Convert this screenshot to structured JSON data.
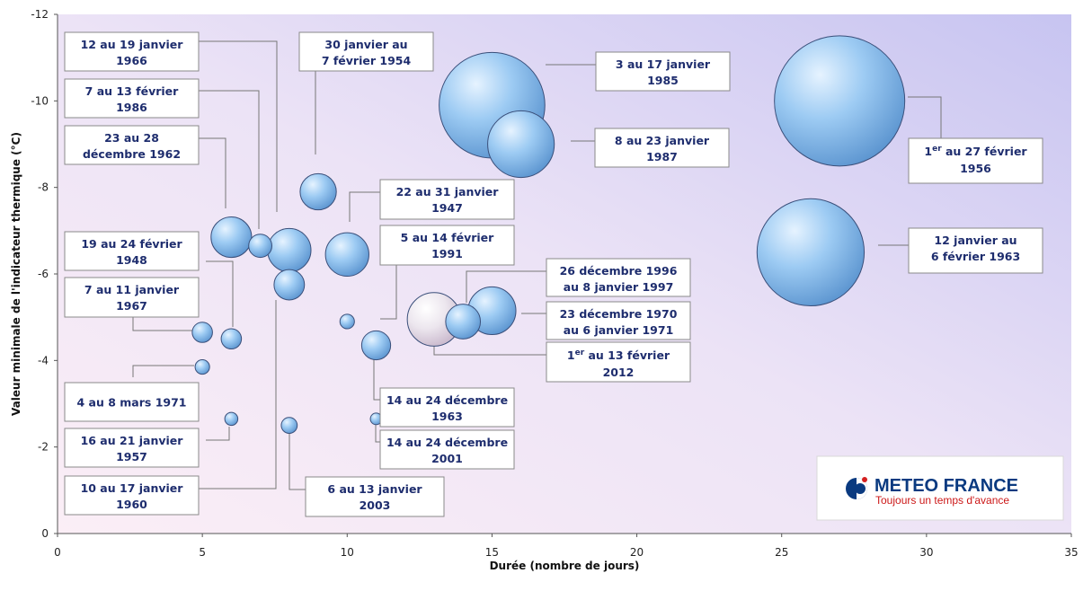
{
  "chart_data": {
    "type": "scatter",
    "title": "",
    "xlabel": "Durée (nombre de jours)",
    "ylabel": "Valeur minimale de l'indicateur thermique (°C)",
    "xlim": [
      0,
      35
    ],
    "ylim": [
      0,
      -12
    ],
    "x_ticks": [
      "0",
      "5",
      "10",
      "15",
      "20",
      "25",
      "30",
      "35"
    ],
    "y_ticks": [
      "0",
      "-2",
      "-4",
      "-6",
      "-8",
      "-10",
      "-12"
    ],
    "grid": false,
    "bubble_color": "#8fc2ee",
    "highlight_color": "#e9e2ec",
    "points": [
      {
        "label": [
          "3 au 17 janvier",
          "1985"
        ],
        "x": 15,
        "y": -9.9,
        "size": 3.65
      },
      {
        "label": [
          "8 au 23 janvier",
          "1987"
        ],
        "x": 16,
        "y": -9.0,
        "size": 2.3
      },
      {
        "label": [
          "1",
          "er",
          " au 27 février",
          "1956"
        ],
        "x": 27,
        "y": -10.0,
        "size": 4.5
      },
      {
        "label": [
          "12 janvier au",
          "6 février 1963"
        ],
        "x": 26,
        "y": -6.5,
        "size": 3.7
      },
      {
        "label": [
          "30 janvier au",
          "7 février 1954"
        ],
        "x": 9,
        "y": -7.9,
        "size": 1.25
      },
      {
        "label": [
          "22 au 31 janvier",
          "1947"
        ],
        "x": 10,
        "y": -6.45,
        "size": 1.5
      },
      {
        "label": [
          "12 au 19 janvier",
          "1966"
        ],
        "x": 8,
        "y": -6.55,
        "size": 1.5
      },
      {
        "label": [
          "23 au 28",
          "décembre 1962"
        ],
        "x": 6,
        "y": -6.85,
        "size": 1.4
      },
      {
        "label": [
          "7 au 13 février",
          "1986"
        ],
        "x": 7,
        "y": -6.65,
        "size": 0.8
      },
      {
        "label": [
          "10 au 17 janvier",
          "1960"
        ],
        "x": 8,
        "y": -5.75,
        "size": 1.05
      },
      {
        "label": [
          "5 au 14 février",
          "1991"
        ],
        "x": 10,
        "y": -4.9,
        "size": 0.5
      },
      {
        "label": [
          "26 décembre 1996",
          "au 8 janvier 1997"
        ],
        "x": 14,
        "y": -4.9,
        "size": 1.2
      },
      {
        "label": [
          "23 décembre 1970",
          "au 6 janvier 1971"
        ],
        "x": 15,
        "y": -5.15,
        "size": 1.65
      },
      {
        "label": [
          "1",
          "er",
          " au 13 février",
          "2012"
        ],
        "x": 13,
        "y": -4.95,
        "size": 1.85,
        "highlight": true
      },
      {
        "label": [
          "19 au 24 février",
          "1948"
        ],
        "x": 6,
        "y": -4.5,
        "size": 0.7
      },
      {
        "label": [
          "7 au 11 janvier",
          "1967"
        ],
        "x": 5,
        "y": -4.65,
        "size": 0.7
      },
      {
        "label": [
          "4 au 8 mars 1971"
        ],
        "x": 5,
        "y": -3.85,
        "size": 0.5
      },
      {
        "label": [
          "14 au 24 décembre",
          "1963"
        ],
        "x": 11,
        "y": -4.35,
        "size": 1.0
      },
      {
        "label": [
          "16 au 21 janvier",
          "1957"
        ],
        "x": 6,
        "y": -2.65,
        "size": 0.45
      },
      {
        "label": [
          "6 au 13 janvier",
          "2003"
        ],
        "x": 8,
        "y": -2.5,
        "size": 0.55
      },
      {
        "label": [
          "14 au 24 décembre",
          "2001"
        ],
        "x": 11,
        "y": -2.65,
        "size": 0.4
      }
    ]
  },
  "logo": {
    "name": "METEO FRANCE",
    "tagline": "Toujours un temps d'avance"
  }
}
